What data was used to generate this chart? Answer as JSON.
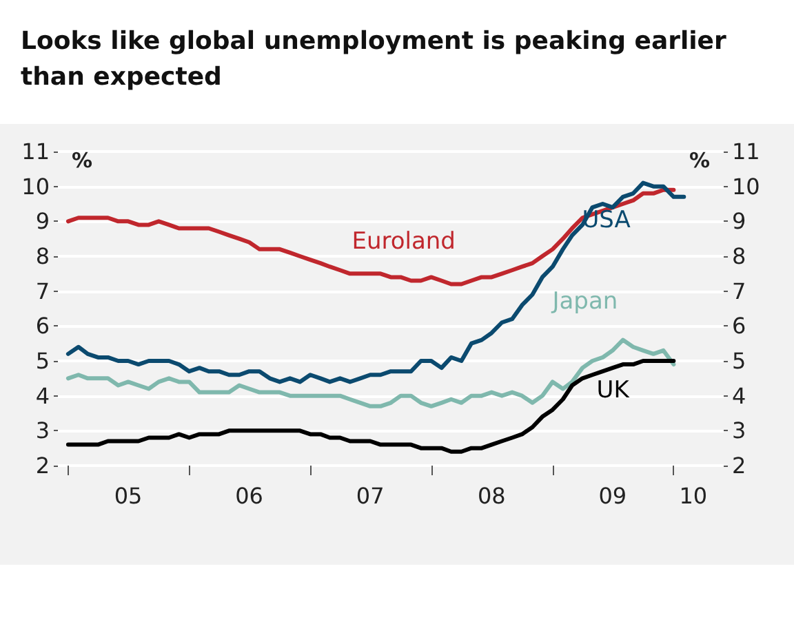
{
  "chart_data": {
    "type": "line",
    "title": "Looks like global unemployment is peaking earlier than expected",
    "ylabel": "%",
    "y2label": "%",
    "x": [
      "2005-01",
      "2005-02",
      "2005-03",
      "2005-04",
      "2005-05",
      "2005-06",
      "2005-07",
      "2005-08",
      "2005-09",
      "2005-10",
      "2005-11",
      "2005-12",
      "2006-01",
      "2006-02",
      "2006-03",
      "2006-04",
      "2006-05",
      "2006-06",
      "2006-07",
      "2006-08",
      "2006-09",
      "2006-10",
      "2006-11",
      "2006-12",
      "2007-01",
      "2007-02",
      "2007-03",
      "2007-04",
      "2007-05",
      "2007-06",
      "2007-07",
      "2007-08",
      "2007-09",
      "2007-10",
      "2007-11",
      "2007-12",
      "2008-01",
      "2008-02",
      "2008-03",
      "2008-04",
      "2008-05",
      "2008-06",
      "2008-07",
      "2008-08",
      "2008-09",
      "2008-10",
      "2008-11",
      "2008-12",
      "2009-01",
      "2009-02",
      "2009-03",
      "2009-04",
      "2009-05",
      "2009-06",
      "2009-07",
      "2009-08",
      "2009-09",
      "2009-10",
      "2009-11",
      "2009-12",
      "2010-01",
      "2010-02"
    ],
    "series": [
      {
        "name": "Euroland",
        "color": "#c0272d",
        "values": [
          9.0,
          9.1,
          9.1,
          9.1,
          9.1,
          9.0,
          9.0,
          8.9,
          8.9,
          9.0,
          8.9,
          8.8,
          8.8,
          8.8,
          8.8,
          8.7,
          8.6,
          8.5,
          8.4,
          8.2,
          8.2,
          8.2,
          8.1,
          8.0,
          7.9,
          7.8,
          7.7,
          7.6,
          7.5,
          7.5,
          7.5,
          7.5,
          7.4,
          7.4,
          7.3,
          7.3,
          7.4,
          7.3,
          7.2,
          7.2,
          7.3,
          7.4,
          7.4,
          7.5,
          7.6,
          7.7,
          7.8,
          8.0,
          8.2,
          8.5,
          8.8,
          9.1,
          9.2,
          9.3,
          9.4,
          9.5,
          9.6,
          9.8,
          9.8,
          9.9,
          9.9,
          null
        ]
      },
      {
        "name": "USA",
        "color": "#0b4a6f",
        "values": [
          5.2,
          5.4,
          5.2,
          5.1,
          5.1,
          5.0,
          5.0,
          4.9,
          5.0,
          5.0,
          5.0,
          4.9,
          4.7,
          4.8,
          4.7,
          4.7,
          4.6,
          4.6,
          4.7,
          4.7,
          4.5,
          4.4,
          4.5,
          4.4,
          4.6,
          4.5,
          4.4,
          4.5,
          4.4,
          4.5,
          4.6,
          4.6,
          4.7,
          4.7,
          4.7,
          5.0,
          5.0,
          4.8,
          5.1,
          5.0,
          5.5,
          5.6,
          5.8,
          6.1,
          6.2,
          6.6,
          6.9,
          7.4,
          7.7,
          8.2,
          8.6,
          8.9,
          9.4,
          9.5,
          9.4,
          9.7,
          9.8,
          10.1,
          10.0,
          10.0,
          9.7,
          9.7
        ]
      },
      {
        "name": "Japan",
        "color": "#7fb8ad",
        "values": [
          4.5,
          4.6,
          4.5,
          4.5,
          4.5,
          4.3,
          4.4,
          4.3,
          4.2,
          4.4,
          4.5,
          4.4,
          4.4,
          4.1,
          4.1,
          4.1,
          4.1,
          4.3,
          4.2,
          4.1,
          4.1,
          4.1,
          4.0,
          4.0,
          4.0,
          4.0,
          4.0,
          4.0,
          3.9,
          3.8,
          3.7,
          3.7,
          3.8,
          4.0,
          4.0,
          3.8,
          3.7,
          3.8,
          3.9,
          3.8,
          4.0,
          4.0,
          4.1,
          4.0,
          4.1,
          4.0,
          3.8,
          4.0,
          4.4,
          4.2,
          4.4,
          4.8,
          5.0,
          5.1,
          5.3,
          5.6,
          5.4,
          5.3,
          5.2,
          5.3,
          4.9,
          null
        ]
      },
      {
        "name": "UK",
        "color": "#000000",
        "values": [
          2.6,
          2.6,
          2.6,
          2.6,
          2.7,
          2.7,
          2.7,
          2.7,
          2.8,
          2.8,
          2.8,
          2.9,
          2.8,
          2.9,
          2.9,
          2.9,
          3.0,
          3.0,
          3.0,
          3.0,
          3.0,
          3.0,
          3.0,
          3.0,
          2.9,
          2.9,
          2.8,
          2.8,
          2.7,
          2.7,
          2.7,
          2.6,
          2.6,
          2.6,
          2.6,
          2.5,
          2.5,
          2.5,
          2.4,
          2.4,
          2.5,
          2.5,
          2.6,
          2.7,
          2.8,
          2.9,
          3.1,
          3.4,
          3.6,
          3.9,
          4.3,
          4.5,
          4.6,
          4.7,
          4.8,
          4.9,
          4.9,
          5.0,
          5.0,
          5.0,
          5.0,
          null
        ]
      }
    ],
    "xlim": [
      "2004-12",
      "2010-06"
    ],
    "xticks": [
      {
        "value": "2005",
        "label": null
      },
      {
        "value": "2006",
        "label": null
      },
      {
        "value": "2007",
        "label": null
      },
      {
        "value": "2008",
        "label": null
      },
      {
        "value": "2009",
        "label": null
      },
      {
        "value": "2010",
        "label": null
      },
      {
        "value": "2005-07",
        "label": "05"
      },
      {
        "value": "2006-07",
        "label": "06"
      },
      {
        "value": "2007-07",
        "label": "07"
      },
      {
        "value": "2008-07",
        "label": "08"
      },
      {
        "value": "2009-07",
        "label": "09"
      },
      {
        "value": "2010-03",
        "label": "10"
      }
    ],
    "ylim": [
      2,
      11
    ],
    "yticks": [
      2,
      3,
      4,
      5,
      6,
      7,
      8,
      9,
      10,
      11
    ],
    "y2lim": [
      2,
      11
    ],
    "y2ticks": [
      2,
      3,
      4,
      5,
      6,
      7,
      8,
      9,
      10,
      11
    ],
    "grid": "y",
    "marker": "none",
    "line_style": "solid"
  }
}
